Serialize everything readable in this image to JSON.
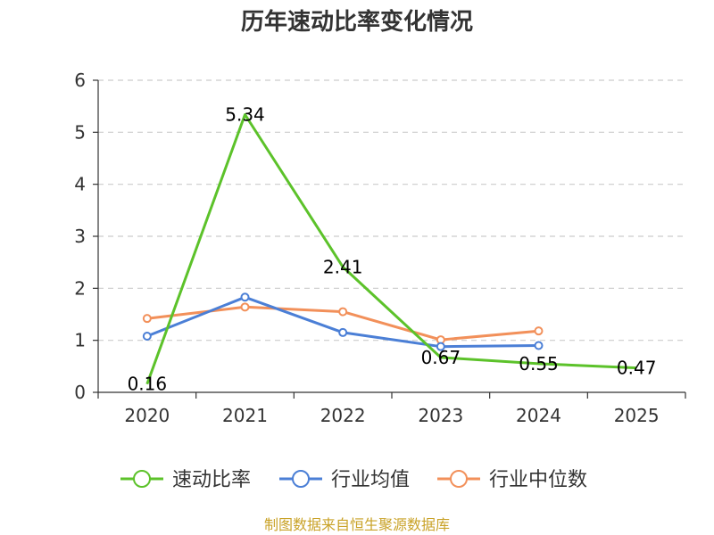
{
  "chart_data": {
    "type": "line",
    "title": "历年速动比率变化情况",
    "categories": [
      "2020",
      "2021",
      "2022",
      "2023",
      "2024",
      "2025"
    ],
    "ylim": [
      0,
      6
    ],
    "yticks": [
      "0",
      "1",
      "2",
      "3",
      "4",
      "5",
      "6"
    ],
    "grid": true,
    "legend_position": "bottom",
    "series": [
      {
        "name": "速动比率",
        "color": "#5cc22a",
        "values": [
          0.16,
          5.34,
          2.41,
          0.67,
          0.55,
          0.47
        ],
        "labels": [
          "0.16",
          "5.34",
          "2.41",
          "0.67",
          "0.55",
          "0.47"
        ]
      },
      {
        "name": "行业均值",
        "color": "#4b7fd6",
        "values": [
          1.08,
          1.83,
          1.15,
          0.88,
          0.9,
          null
        ]
      },
      {
        "name": "行业中位数",
        "color": "#f2905a",
        "values": [
          1.42,
          1.64,
          1.55,
          1.01,
          1.18,
          null
        ]
      }
    ]
  },
  "source": "制图数据来自恒生聚源数据库"
}
